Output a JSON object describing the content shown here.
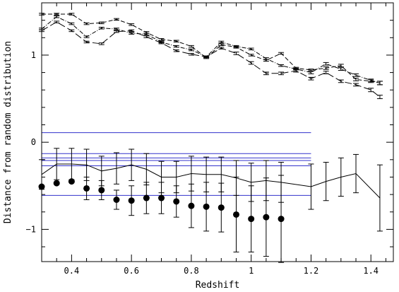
{
  "chart_data": {
    "type": "line",
    "xlabel": "Redshift",
    "ylabel": "Distance from random distribution",
    "xlim": [
      0.3,
      1.475
    ],
    "ylim": [
      -1.37,
      1.6
    ],
    "x_ticks": [
      0.4,
      0.6,
      0.8,
      1.0,
      1.2,
      1.4
    ],
    "x_tick_labels": [
      "0.4",
      "0.6",
      "0.8",
      "1",
      "1.2",
      "1.4"
    ],
    "y_ticks": [
      -1,
      0,
      1
    ],
    "y_tick_labels": [
      "−1",
      "0",
      "1"
    ],
    "grid": false,
    "reference_lines": {
      "color": "#3333cc",
      "x_range": [
        0.3,
        1.2
      ],
      "y_values": [
        0.11,
        -0.13,
        -0.18,
        -0.21,
        -0.27,
        -0.61
      ]
    },
    "series": [
      {
        "style": "dash",
        "x": [
          0.3,
          0.35,
          0.4,
          0.45,
          0.5,
          0.55,
          0.6,
          0.65,
          0.7,
          0.75,
          0.8,
          0.85,
          0.9,
          0.95,
          1.0,
          1.05,
          1.1,
          1.15,
          1.2,
          1.25,
          1.3,
          1.35,
          1.4,
          1.43
        ],
        "y": [
          1.47,
          1.47,
          1.47,
          1.36,
          1.37,
          1.41,
          1.35,
          1.26,
          1.18,
          1.16,
          1.1,
          0.97,
          1.12,
          1.09,
          1.0,
          0.94,
          1.02,
          0.85,
          0.83,
          0.85,
          0.88,
          0.72,
          0.7,
          0.68
        ],
        "err": [
          0.01,
          0.01,
          0.01,
          0.01,
          0.01,
          0.01,
          0.01,
          0.01,
          0.01,
          0.01,
          0.01,
          0.01,
          0.01,
          0.01,
          0.01,
          0.01,
          0.01,
          0.01,
          0.01,
          0.015,
          0.015,
          0.015,
          0.015,
          0.02
        ]
      },
      {
        "style": "dashdot",
        "x": [
          0.3,
          0.35,
          0.4,
          0.45,
          0.5,
          0.55,
          0.6,
          0.65,
          0.7,
          0.75,
          0.8,
          0.85,
          0.9,
          0.95,
          1.0,
          1.05,
          1.1,
          1.15,
          1.2,
          1.25,
          1.3,
          1.35,
          1.4,
          1.43
        ],
        "y": [
          1.3,
          1.44,
          1.36,
          1.21,
          1.31,
          1.3,
          1.25,
          1.24,
          1.15,
          1.1,
          1.06,
          0.98,
          1.15,
          1.1,
          1.07,
          0.96,
          0.88,
          0.84,
          0.8,
          0.9,
          0.84,
          0.77,
          0.71,
          0.68
        ],
        "err": [
          0.01,
          0.01,
          0.01,
          0.01,
          0.01,
          0.01,
          0.01,
          0.01,
          0.01,
          0.01,
          0.01,
          0.01,
          0.01,
          0.01,
          0.01,
          0.01,
          0.01,
          0.01,
          0.015,
          0.015,
          0.015,
          0.015,
          0.015,
          0.02
        ]
      },
      {
        "style": "longdash",
        "x": [
          0.3,
          0.35,
          0.4,
          0.45,
          0.5,
          0.55,
          0.6,
          0.65,
          0.7,
          0.75,
          0.8,
          0.85,
          0.9,
          0.95,
          1.0,
          1.05,
          1.1,
          1.15,
          1.2,
          1.25,
          1.3,
          1.35,
          1.4,
          1.43
        ],
        "y": [
          1.28,
          1.38,
          1.28,
          1.15,
          1.13,
          1.27,
          1.28,
          1.21,
          1.14,
          1.05,
          1.01,
          0.98,
          1.08,
          1.02,
          0.91,
          0.79,
          0.79,
          0.82,
          0.73,
          0.8,
          0.7,
          0.66,
          0.6,
          0.52
        ],
        "err": [
          0.01,
          0.01,
          0.01,
          0.01,
          0.01,
          0.01,
          0.01,
          0.01,
          0.01,
          0.01,
          0.01,
          0.01,
          0.01,
          0.015,
          0.015,
          0.015,
          0.015,
          0.015,
          0.015,
          0.015,
          0.015,
          0.015,
          0.02,
          0.02
        ]
      },
      {
        "style": "solid",
        "x": [
          0.3,
          0.35,
          0.4,
          0.45,
          0.5,
          0.55,
          0.6,
          0.65,
          0.7,
          0.75,
          0.8,
          0.85,
          0.9,
          0.95,
          1.0,
          1.05,
          1.1,
          1.2,
          1.25,
          1.3,
          1.35,
          1.43
        ],
        "y": [
          -0.37,
          -0.25,
          -0.25,
          -0.26,
          -0.33,
          -0.3,
          -0.26,
          -0.31,
          -0.4,
          -0.4,
          -0.36,
          -0.37,
          -0.37,
          -0.41,
          -0.46,
          -0.44,
          -0.46,
          -0.51,
          -0.45,
          -0.4,
          -0.36,
          -0.64
        ],
        "err": [
          0.17,
          0.18,
          0.18,
          0.18,
          0.17,
          0.18,
          0.18,
          0.18,
          0.18,
          0.18,
          0.2,
          0.2,
          0.2,
          0.2,
          0.22,
          0.23,
          0.23,
          0.26,
          0.22,
          0.22,
          0.22,
          0.38
        ]
      },
      {
        "style": "points",
        "x": [
          0.3,
          0.35,
          0.4,
          0.45,
          0.5,
          0.55,
          0.6,
          0.65,
          0.7,
          0.75,
          0.8,
          0.85,
          0.9,
          0.95,
          1.0,
          1.05,
          1.1
        ],
        "y": [
          -0.51,
          -0.47,
          -0.45,
          -0.53,
          -0.55,
          -0.66,
          -0.67,
          -0.64,
          -0.64,
          -0.68,
          -0.73,
          -0.74,
          -0.75,
          -0.83,
          -0.88,
          -0.86,
          -0.88
        ],
        "err": [
          0.0,
          0.0,
          0.0,
          0.13,
          0.11,
          0.11,
          0.17,
          0.18,
          0.18,
          0.18,
          0.25,
          0.28,
          0.28,
          0.43,
          0.38,
          0.45,
          0.5
        ]
      }
    ]
  }
}
